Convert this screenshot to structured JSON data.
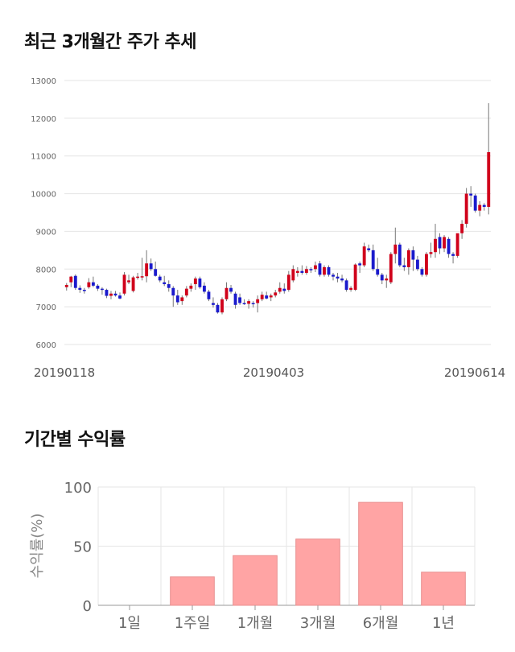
{
  "sections": {
    "price_title": "최근 3개월간 주가 추세",
    "return_title": "기간별 수익률"
  },
  "colors": {
    "up": "#d0021b",
    "down": "#1a1acc",
    "bar": "#ffa4a4",
    "bar_border": "#e88e8e",
    "grid": "#e5e5e5"
  },
  "chart_data": [
    {
      "type": "candlestick",
      "title": "최근 3개월간 주가 추세",
      "ylim": [
        6000,
        13000
      ],
      "yticks": [
        6000,
        7000,
        8000,
        9000,
        10000,
        11000,
        12000,
        13000
      ],
      "x_labels": [
        "20190118",
        "20190403",
        "20190614"
      ],
      "grid": "horizontal",
      "candles": [
        [
          7520,
          7630,
          7430,
          7580
        ],
        [
          7650,
          7820,
          7520,
          7800
        ],
        [
          7820,
          7860,
          7450,
          7500
        ],
        [
          7500,
          7570,
          7370,
          7450
        ],
        [
          7450,
          7500,
          7350,
          7420
        ],
        [
          7520,
          7760,
          7480,
          7650
        ],
        [
          7650,
          7800,
          7520,
          7560
        ],
        [
          7560,
          7600,
          7420,
          7480
        ],
        [
          7480,
          7520,
          7320,
          7450
        ],
        [
          7450,
          7480,
          7230,
          7290
        ],
        [
          7290,
          7420,
          7200,
          7350
        ],
        [
          7350,
          7420,
          7270,
          7300
        ],
        [
          7300,
          7380,
          7200,
          7220
        ],
        [
          7350,
          7920,
          7300,
          7850
        ],
        [
          7650,
          7850,
          7600,
          7700
        ],
        [
          7420,
          7820,
          7380,
          7780
        ],
        [
          7800,
          7900,
          7720,
          7800
        ],
        [
          7800,
          8300,
          7700,
          7810
        ],
        [
          7810,
          8500,
          7650,
          8150
        ],
        [
          8150,
          8280,
          7950,
          8000
        ],
        [
          8000,
          8200,
          7800,
          7820
        ],
        [
          7800,
          7850,
          7650,
          7700
        ],
        [
          7650,
          7820,
          7550,
          7600
        ],
        [
          7600,
          7700,
          7400,
          7500
        ],
        [
          7500,
          7550,
          7000,
          7300
        ],
        [
          7300,
          7450,
          7050,
          7120
        ],
        [
          7150,
          7300,
          7050,
          7250
        ],
        [
          7300,
          7550,
          7250,
          7480
        ],
        [
          7480,
          7620,
          7400,
          7560
        ],
        [
          7600,
          7800,
          7450,
          7750
        ],
        [
          7750,
          7800,
          7480,
          7520
        ],
        [
          7560,
          7650,
          7350,
          7400
        ],
        [
          7400,
          7450,
          7150,
          7200
        ],
        [
          7100,
          7250,
          6980,
          7050
        ],
        [
          7050,
          7100,
          6820,
          6850
        ],
        [
          6850,
          7250,
          6800,
          7200
        ],
        [
          7200,
          7650,
          7150,
          7500
        ],
        [
          7500,
          7580,
          7350,
          7400
        ],
        [
          7350,
          7400,
          6950,
          7050
        ],
        [
          7250,
          7350,
          7050,
          7100
        ],
        [
          7100,
          7200,
          7050,
          7080
        ],
        [
          7080,
          7200,
          6950,
          7150
        ],
        [
          7100,
          7150,
          6980,
          7080
        ],
        [
          7100,
          7300,
          6850,
          7200
        ],
        [
          7200,
          7400,
          7150,
          7320
        ],
        [
          7300,
          7400,
          7200,
          7220
        ],
        [
          7250,
          7350,
          7150,
          7300
        ],
        [
          7300,
          7450,
          7250,
          7380
        ],
        [
          7400,
          7650,
          7350,
          7500
        ],
        [
          7480,
          7620,
          7350,
          7420
        ],
        [
          7450,
          7950,
          7400,
          7850
        ],
        [
          7700,
          8100,
          7650,
          8000
        ],
        [
          7900,
          8050,
          7800,
          7950
        ],
        [
          7950,
          8100,
          7850,
          7900
        ],
        [
          7900,
          8080,
          7850,
          8000
        ],
        [
          8000,
          8050,
          7900,
          7980
        ],
        [
          8000,
          8200,
          7920,
          8100
        ],
        [
          8150,
          8220,
          7800,
          7850
        ],
        [
          7850,
          8100,
          7800,
          8050
        ],
        [
          8050,
          8100,
          7800,
          7850
        ],
        [
          7850,
          7900,
          7700,
          7800
        ],
        [
          7800,
          7900,
          7650,
          7750
        ],
        [
          7750,
          7850,
          7650,
          7700
        ],
        [
          7700,
          7750,
          7400,
          7450
        ],
        [
          7450,
          7550,
          7400,
          7500
        ],
        [
          7450,
          8150,
          7420,
          8120
        ],
        [
          8150,
          8200,
          7900,
          8100
        ],
        [
          8100,
          8700,
          8050,
          8600
        ],
        [
          8550,
          8650,
          8450,
          8500
        ],
        [
          8500,
          8650,
          7950,
          8000
        ],
        [
          8000,
          8300,
          7800,
          7850
        ],
        [
          7850,
          7900,
          7600,
          7700
        ],
        [
          7700,
          7850,
          7500,
          7750
        ],
        [
          7650,
          8450,
          7600,
          8400
        ],
        [
          8400,
          9100,
          8150,
          8650
        ],
        [
          8650,
          8700,
          8050,
          8100
        ],
        [
          8100,
          8300,
          7950,
          8050
        ],
        [
          8050,
          8550,
          7850,
          8500
        ],
        [
          8500,
          8600,
          7950,
          8250
        ],
        [
          8250,
          8350,
          7950,
          8000
        ],
        [
          8000,
          8050,
          7800,
          7850
        ],
        [
          7850,
          8450,
          7800,
          8400
        ],
        [
          8400,
          8700,
          8300,
          8450
        ],
        [
          8450,
          9200,
          8300,
          8800
        ],
        [
          8850,
          8950,
          8400,
          8550
        ],
        [
          8550,
          8900,
          8450,
          8850
        ],
        [
          8800,
          8850,
          8300,
          8400
        ],
        [
          8400,
          8450,
          8150,
          8350
        ],
        [
          8350,
          8900,
          8300,
          8950
        ],
        [
          8950,
          9300,
          8800,
          9200
        ],
        [
          9200,
          10150,
          9100,
          10000
        ],
        [
          10000,
          10200,
          9650,
          9950
        ],
        [
          9950,
          10000,
          9500,
          9550
        ],
        [
          9550,
          9800,
          9400,
          9700
        ],
        [
          9700,
          9750,
          9550,
          9650
        ],
        [
          9650,
          12400,
          9450,
          11100
        ]
      ]
    },
    {
      "type": "bar",
      "categories": [
        "1일",
        "1주일",
        "1개월",
        "3개월",
        "6개월",
        "1년"
      ],
      "values": [
        0,
        24,
        42,
        56,
        87,
        28
      ],
      "ylabel": "수익률(%)",
      "ylim": [
        0,
        100
      ],
      "yticks": [
        0,
        50,
        100
      ],
      "grid": "both"
    }
  ]
}
